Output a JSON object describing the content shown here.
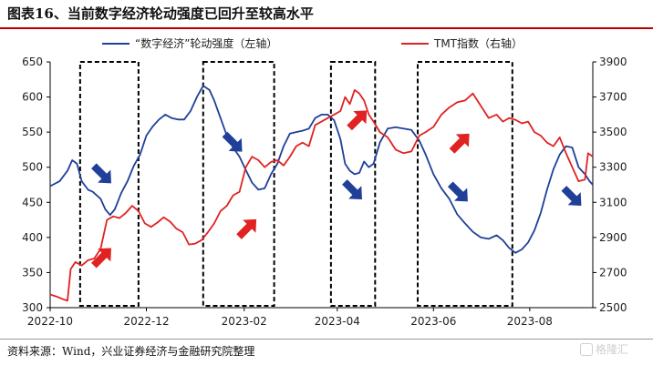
{
  "title": "图表16、当前数字经济轮动强度已回升至较高水平",
  "source": "资料来源：Wind，兴业证券经济与金融研究院整理",
  "watermark": "格隆汇",
  "chart_data": {
    "type": "line",
    "xlabel": "",
    "ylabel": "",
    "x_range": [
      "2022-10-01",
      "2023-09-10"
    ],
    "x_ticks": [
      "2022-10",
      "2022-12",
      "2023-02",
      "2023-04",
      "2023-06",
      "2023-08"
    ],
    "y_left_range": [
      300,
      650
    ],
    "y_left_ticks": [
      300,
      350,
      400,
      450,
      500,
      550,
      600,
      650
    ],
    "y_right_range": [
      2500,
      3900
    ],
    "y_right_ticks": [
      2500,
      2700,
      2900,
      3100,
      3300,
      3500,
      3700,
      3900
    ],
    "grid": false,
    "legend_position": "top",
    "series": [
      {
        "name": "“数字经济”轮动强度（左轴）",
        "axis": "left",
        "color": "#1f3f99",
        "points": [
          [
            "2022-10-01",
            473
          ],
          [
            "2022-10-07",
            480
          ],
          [
            "2022-10-12",
            495
          ],
          [
            "2022-10-15",
            510
          ],
          [
            "2022-10-18",
            505
          ],
          [
            "2022-10-21",
            480
          ],
          [
            "2022-10-25",
            468
          ],
          [
            "2022-10-28",
            465
          ],
          [
            "2022-11-02",
            455
          ],
          [
            "2022-11-05",
            440
          ],
          [
            "2022-11-08",
            432
          ],
          [
            "2022-11-11",
            440
          ],
          [
            "2022-11-15",
            463
          ],
          [
            "2022-11-19",
            480
          ],
          [
            "2022-11-23",
            502
          ],
          [
            "2022-11-27",
            518
          ],
          [
            "2022-12-01",
            545
          ],
          [
            "2022-12-05",
            558
          ],
          [
            "2022-12-09",
            568
          ],
          [
            "2022-12-13",
            575
          ],
          [
            "2022-12-17",
            570
          ],
          [
            "2022-12-21",
            568
          ],
          [
            "2022-12-25",
            568
          ],
          [
            "2022-12-29",
            580
          ],
          [
            "2023-01-02",
            600
          ],
          [
            "2023-01-06",
            616
          ],
          [
            "2023-01-10",
            610
          ],
          [
            "2023-01-13",
            595
          ],
          [
            "2023-01-17",
            570
          ],
          [
            "2023-01-21",
            545
          ],
          [
            "2023-01-25",
            528
          ],
          [
            "2023-01-29",
            515
          ],
          [
            "2023-02-02",
            496
          ],
          [
            "2023-02-06",
            478
          ],
          [
            "2023-02-10",
            468
          ],
          [
            "2023-02-14",
            470
          ],
          [
            "2023-02-18",
            490
          ],
          [
            "2023-02-22",
            505
          ],
          [
            "2023-02-26",
            530
          ],
          [
            "2023-03-02",
            548
          ],
          [
            "2023-03-06",
            550
          ],
          [
            "2023-03-10",
            552
          ],
          [
            "2023-03-14",
            555
          ],
          [
            "2023-03-18",
            570
          ],
          [
            "2023-03-22",
            575
          ],
          [
            "2023-03-26",
            575
          ],
          [
            "2023-03-30",
            567
          ],
          [
            "2023-04-03",
            540
          ],
          [
            "2023-04-06",
            505
          ],
          [
            "2023-04-09",
            495
          ],
          [
            "2023-04-12",
            490
          ],
          [
            "2023-04-15",
            492
          ],
          [
            "2023-04-18",
            508
          ],
          [
            "2023-04-21",
            500
          ],
          [
            "2023-04-24",
            505
          ],
          [
            "2023-04-28",
            535
          ],
          [
            "2023-05-03",
            555
          ],
          [
            "2023-05-08",
            557
          ],
          [
            "2023-05-13",
            555
          ],
          [
            "2023-05-18",
            553
          ],
          [
            "2023-05-23",
            538
          ],
          [
            "2023-05-27",
            518
          ],
          [
            "2023-06-01",
            490
          ],
          [
            "2023-06-06",
            470
          ],
          [
            "2023-06-11",
            455
          ],
          [
            "2023-06-16",
            433
          ],
          [
            "2023-06-21",
            420
          ],
          [
            "2023-06-26",
            408
          ],
          [
            "2023-07-01",
            400
          ],
          [
            "2023-07-06",
            398
          ],
          [
            "2023-07-11",
            403
          ],
          [
            "2023-07-15",
            396
          ],
          [
            "2023-07-19",
            385
          ],
          [
            "2023-07-23",
            378
          ],
          [
            "2023-07-27",
            383
          ],
          [
            "2023-07-31",
            393
          ],
          [
            "2023-08-04",
            410
          ],
          [
            "2023-08-08",
            435
          ],
          [
            "2023-08-12",
            468
          ],
          [
            "2023-08-16",
            497
          ],
          [
            "2023-08-20",
            518
          ],
          [
            "2023-08-24",
            530
          ],
          [
            "2023-08-28",
            528
          ],
          [
            "2023-09-01",
            500
          ],
          [
            "2023-09-05",
            490
          ],
          [
            "2023-09-08",
            480
          ],
          [
            "2023-09-10",
            475
          ]
        ]
      },
      {
        "name": "TMT指数（右轴）",
        "axis": "right",
        "color": "#e02222",
        "points": [
          [
            "2022-10-01",
            2575
          ],
          [
            "2022-10-06",
            2560
          ],
          [
            "2022-10-10",
            2545
          ],
          [
            "2022-10-12",
            2540
          ],
          [
            "2022-10-14",
            2720
          ],
          [
            "2022-10-17",
            2760
          ],
          [
            "2022-10-21",
            2740
          ],
          [
            "2022-10-25",
            2770
          ],
          [
            "2022-10-29",
            2780
          ],
          [
            "2022-11-02",
            2835
          ],
          [
            "2022-11-06",
            3000
          ],
          [
            "2022-11-10",
            3020
          ],
          [
            "2022-11-14",
            3010
          ],
          [
            "2022-11-18",
            3040
          ],
          [
            "2022-11-22",
            3080
          ],
          [
            "2022-11-26",
            3050
          ],
          [
            "2022-11-30",
            2980
          ],
          [
            "2022-12-04",
            2960
          ],
          [
            "2022-12-08",
            2985
          ],
          [
            "2022-12-12",
            3015
          ],
          [
            "2022-12-16",
            2990
          ],
          [
            "2022-12-20",
            2950
          ],
          [
            "2022-12-24",
            2930
          ],
          [
            "2022-12-28",
            2860
          ],
          [
            "2023-01-01",
            2865
          ],
          [
            "2023-01-05",
            2885
          ],
          [
            "2023-01-09",
            2930
          ],
          [
            "2023-01-13",
            2980
          ],
          [
            "2023-01-17",
            3050
          ],
          [
            "2023-01-21",
            3080
          ],
          [
            "2023-01-25",
            3140
          ],
          [
            "2023-01-29",
            3160
          ],
          [
            "2023-02-02",
            3300
          ],
          [
            "2023-02-06",
            3360
          ],
          [
            "2023-02-10",
            3340
          ],
          [
            "2023-02-14",
            3300
          ],
          [
            "2023-02-18",
            3330
          ],
          [
            "2023-02-22",
            3340
          ],
          [
            "2023-02-26",
            3310
          ],
          [
            "2023-03-02",
            3360
          ],
          [
            "2023-03-06",
            3420
          ],
          [
            "2023-03-10",
            3440
          ],
          [
            "2023-03-14",
            3420
          ],
          [
            "2023-03-18",
            3540
          ],
          [
            "2023-03-22",
            3560
          ],
          [
            "2023-03-26",
            3580
          ],
          [
            "2023-03-30",
            3600
          ],
          [
            "2023-04-03",
            3620
          ],
          [
            "2023-04-06",
            3700
          ],
          [
            "2023-04-09",
            3660
          ],
          [
            "2023-04-12",
            3740
          ],
          [
            "2023-04-15",
            3720
          ],
          [
            "2023-04-18",
            3680
          ],
          [
            "2023-04-21",
            3600
          ],
          [
            "2023-04-24",
            3560
          ],
          [
            "2023-04-28",
            3500
          ],
          [
            "2023-05-03",
            3470
          ],
          [
            "2023-05-08",
            3400
          ],
          [
            "2023-05-13",
            3380
          ],
          [
            "2023-05-18",
            3390
          ],
          [
            "2023-05-23",
            3480
          ],
          [
            "2023-05-27",
            3500
          ],
          [
            "2023-06-01",
            3530
          ],
          [
            "2023-06-06",
            3600
          ],
          [
            "2023-06-11",
            3640
          ],
          [
            "2023-06-16",
            3670
          ],
          [
            "2023-06-21",
            3680
          ],
          [
            "2023-06-26",
            3720
          ],
          [
            "2023-07-01",
            3650
          ],
          [
            "2023-07-06",
            3580
          ],
          [
            "2023-07-11",
            3600
          ],
          [
            "2023-07-15",
            3560
          ],
          [
            "2023-07-19",
            3580
          ],
          [
            "2023-07-23",
            3570
          ],
          [
            "2023-07-27",
            3550
          ],
          [
            "2023-07-31",
            3560
          ],
          [
            "2023-08-04",
            3500
          ],
          [
            "2023-08-08",
            3480
          ],
          [
            "2023-08-12",
            3440
          ],
          [
            "2023-08-16",
            3420
          ],
          [
            "2023-08-20",
            3470
          ],
          [
            "2023-08-24",
            3380
          ],
          [
            "2023-08-28",
            3300
          ],
          [
            "2023-09-01",
            3220
          ],
          [
            "2023-09-05",
            3230
          ],
          [
            "2023-09-07",
            3380
          ],
          [
            "2023-09-10",
            3360
          ]
        ]
      }
    ],
    "shaded_periods": [
      {
        "start": "2022-10-20",
        "end": "2022-11-26"
      },
      {
        "start": "2023-01-06",
        "end": "2023-02-20"
      },
      {
        "start": "2023-03-28",
        "end": "2023-04-25"
      },
      {
        "start": "2023-05-22",
        "end": "2023-07-21"
      }
    ],
    "arrows": [
      {
        "date": "2022-11-03",
        "value_left": 490,
        "direction": "down",
        "color": "#1f3f99"
      },
      {
        "date": "2022-11-03",
        "value_left": 372,
        "direction": "up",
        "color": "#e02222"
      },
      {
        "date": "2023-01-25",
        "value_left": 535,
        "direction": "down",
        "color": "#1f3f99"
      },
      {
        "date": "2023-02-03",
        "value_left": 413,
        "direction": "up",
        "color": "#e02222"
      },
      {
        "date": "2023-04-11",
        "value_left": 467,
        "direction": "down",
        "color": "#1f3f99"
      },
      {
        "date": "2023-04-14",
        "value_left": 568,
        "direction": "up",
        "color": "#e02222"
      },
      {
        "date": "2023-06-17",
        "value_left": 464,
        "direction": "down",
        "color": "#1f3f99"
      },
      {
        "date": "2023-06-18",
        "value_left": 535,
        "direction": "up",
        "color": "#e02222"
      },
      {
        "date": "2023-08-28",
        "value_left": 458,
        "direction": "down",
        "color": "#1f3f99"
      }
    ]
  }
}
